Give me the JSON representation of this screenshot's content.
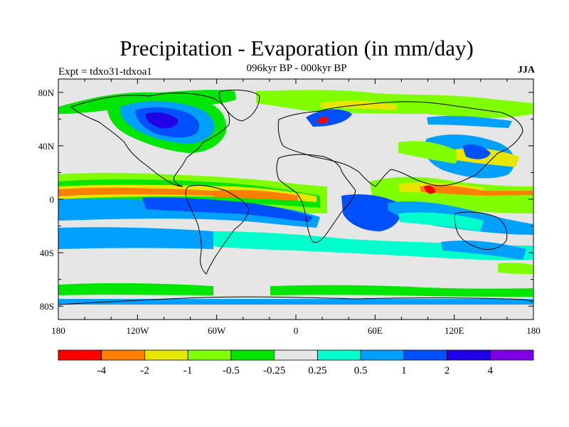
{
  "title": "Precipitation - Evaporation (in mm/day)",
  "subtitle": "096kyr BP - 000kyr BP",
  "left_string": "Expt = tdxo31-tdxoa1",
  "right_string": "JJA",
  "map": {
    "lon_range": [
      -180,
      180
    ],
    "lat_range": [
      -90,
      90
    ],
    "background_color": "#e6e6e6",
    "x_ticks": [
      {
        "lon": -180,
        "label": "180"
      },
      {
        "lon": -120,
        "label": "120W"
      },
      {
        "lon": -60,
        "label": "60W"
      },
      {
        "lon": 0,
        "label": "0"
      },
      {
        "lon": 60,
        "label": "60E"
      },
      {
        "lon": 120,
        "label": "120E"
      },
      {
        "lon": 180,
        "label": "180"
      }
    ],
    "y_ticks": [
      {
        "lat": 80,
        "label": "80N"
      },
      {
        "lat": 40,
        "label": "40N"
      },
      {
        "lat": 0,
        "label": "0"
      },
      {
        "lat": -40,
        "label": "40S"
      },
      {
        "lat": -80,
        "label": "80S"
      }
    ]
  },
  "colorbar": {
    "colors": [
      "#ff0000",
      "#ff8000",
      "#e6e600",
      "#80ff00",
      "#00e600",
      "#e6e6e6",
      "#00ffcc",
      "#00a0ff",
      "#0050ff",
      "#2000e6",
      "#8000e6"
    ],
    "labels": [
      "-4",
      "-2",
      "-1",
      "-0.5",
      "-0.25",
      "0.25",
      "0.5",
      "1",
      "2",
      "4"
    ]
  }
}
